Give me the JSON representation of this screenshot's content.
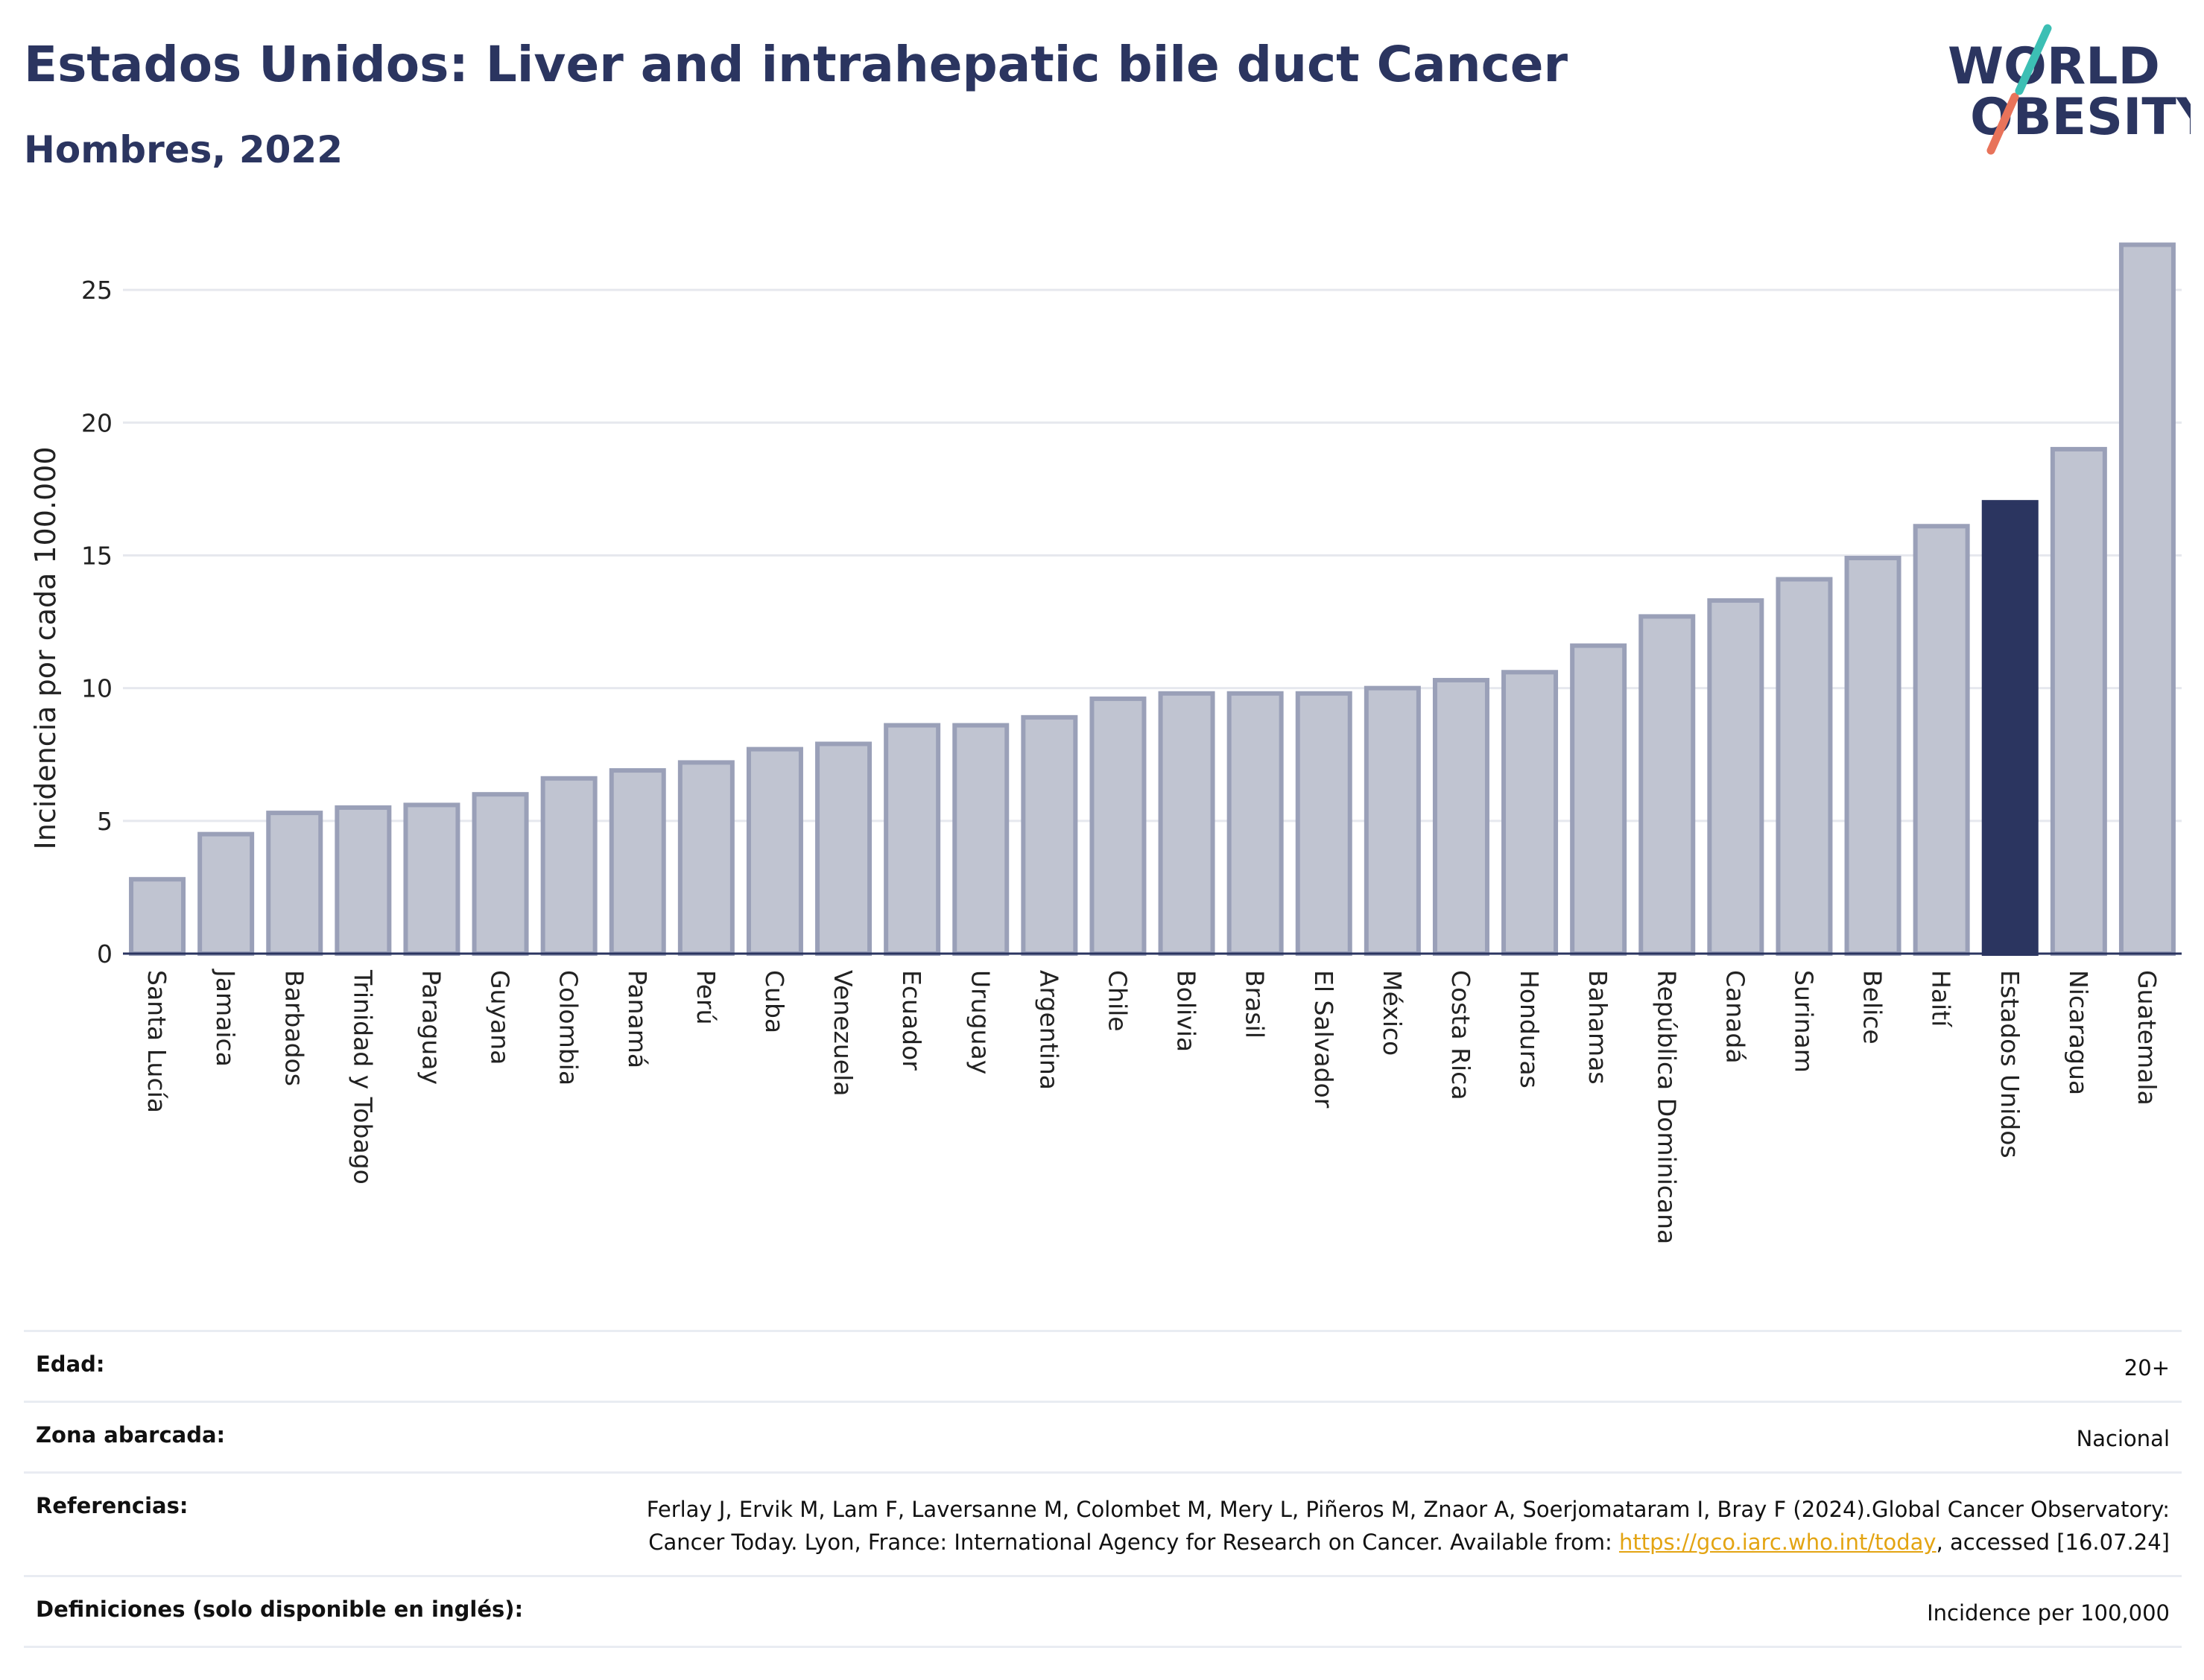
{
  "header": {
    "title": "Estados Unidos: Liver and intrahepatic bile duct Cancer",
    "subtitle": "Hombres, 2022"
  },
  "logo": {
    "line1": "WORLD",
    "line2": "OBESITY",
    "colors": {
      "text": "#2b3560",
      "slash_teal": "#3cbfb4",
      "slash_coral": "#e8735a"
    }
  },
  "chart_data": {
    "type": "bar",
    "title": "Estados Unidos: Liver and intrahepatic bile duct Cancer",
    "subtitle": "Hombres, 2022",
    "ylabel": "Incidencia por cada 100.000",
    "xlabel": "",
    "ylim": [
      0,
      27.5
    ],
    "yticks": [
      0,
      5,
      10,
      15,
      20,
      25
    ],
    "grid": true,
    "highlight": "Estados Unidos",
    "colors": {
      "bar": "#c0c4d1",
      "bar_edge": "#9aa0b8",
      "highlight": "#2b3560",
      "grid": "#e6e8ee",
      "axis": "#2b3560"
    },
    "categories": [
      "Santa Lucía",
      "Jamaica",
      "Barbados",
      "Trinidad y Tobago",
      "Paraguay",
      "Guyana",
      "Colombia",
      "Panamá",
      "Perú",
      "Cuba",
      "Venezuela",
      "Ecuador",
      "Uruguay",
      "Argentina",
      "Chile",
      "Bolivia",
      "Brasil",
      "El Salvador",
      "México",
      "Costa Rica",
      "Honduras",
      "Bahamas",
      "República Dominicana",
      "Canadá",
      "Surinam",
      "Belice",
      "Haití",
      "Estados Unidos",
      "Nicaragua",
      "Guatemala"
    ],
    "values": [
      2.8,
      4.5,
      5.3,
      5.5,
      5.6,
      6.0,
      6.6,
      6.9,
      7.2,
      7.7,
      7.9,
      8.6,
      8.6,
      8.9,
      9.6,
      9.8,
      9.8,
      9.8,
      10.0,
      10.3,
      10.6,
      11.6,
      12.7,
      13.3,
      14.1,
      14.9,
      16.1,
      17.0,
      19.0,
      26.7
    ]
  },
  "info": {
    "rows": [
      {
        "label": "Edad:",
        "value": "20+"
      },
      {
        "label": "Zona abarcada:",
        "value": "Nacional"
      },
      {
        "label": "Referencias:",
        "value_pre": "Ferlay J, Ervik M, Lam F, Laversanne M, Colombet M, Mery L, Piñeros M, Znaor A, Soerjomataram I, Bray F (2024).Global Cancer Observatory: Cancer Today. Lyon, France: International Agency for Research on Cancer. Available from: ",
        "link": "https://gco.iarc.who.int/today",
        "value_post": ", accessed [16.07.24]"
      },
      {
        "label": "Definiciones (solo disponible en inglés):",
        "value": "Incidence per 100,000"
      }
    ]
  }
}
